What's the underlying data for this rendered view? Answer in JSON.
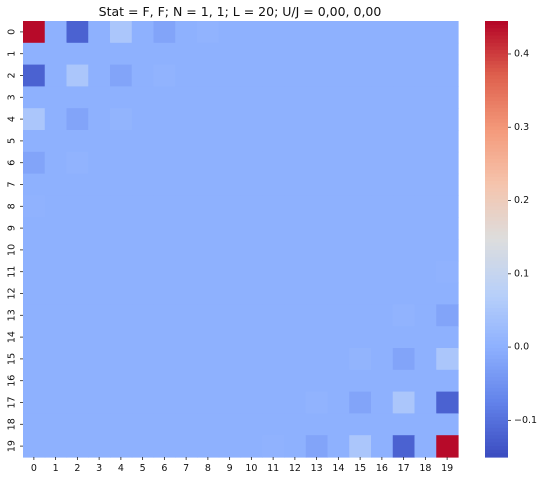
{
  "chart_data": {
    "type": "heatmap",
    "title": "Stat = F, F; N = 1, 1; L = 20; U/J = 0,00, 0,00",
    "xlabel": "",
    "ylabel": "",
    "x_labels": [
      "0",
      "1",
      "2",
      "3",
      "4",
      "5",
      "6",
      "7",
      "8",
      "9",
      "10",
      "11",
      "12",
      "13",
      "14",
      "15",
      "16",
      "17",
      "18",
      "19"
    ],
    "y_labels": [
      "0",
      "1",
      "2",
      "3",
      "4",
      "5",
      "6",
      "7",
      "8",
      "9",
      "10",
      "11",
      "12",
      "13",
      "14",
      "15",
      "16",
      "17",
      "18",
      "19"
    ],
    "colormap": "coolwarm",
    "vmin": -0.15,
    "vmax": 0.445,
    "colorbar_ticks": [
      0.4,
      0.3,
      0.2,
      0.1,
      0.0,
      -0.1
    ],
    "colorbar_tick_labels": [
      "0.4",
      "0.3",
      "0.2",
      "0.1",
      "0.0",
      "−0.1"
    ],
    "default_value": 0.0,
    "cells": [
      {
        "row": 0,
        "col": 0,
        "value": 0.44
      },
      {
        "row": 0,
        "col": 2,
        "value": -0.12
      },
      {
        "row": 0,
        "col": 4,
        "value": 0.05
      },
      {
        "row": 0,
        "col": 6,
        "value": -0.02
      },
      {
        "row": 0,
        "col": 8,
        "value": 0.005
      },
      {
        "row": 2,
        "col": 0,
        "value": -0.12
      },
      {
        "row": 2,
        "col": 2,
        "value": 0.05
      },
      {
        "row": 2,
        "col": 4,
        "value": -0.02
      },
      {
        "row": 2,
        "col": 6,
        "value": 0.005
      },
      {
        "row": 4,
        "col": 0,
        "value": 0.05
      },
      {
        "row": 4,
        "col": 2,
        "value": -0.02
      },
      {
        "row": 4,
        "col": 4,
        "value": 0.008
      },
      {
        "row": 6,
        "col": 0,
        "value": -0.02
      },
      {
        "row": 6,
        "col": 2,
        "value": 0.005
      },
      {
        "row": 8,
        "col": 0,
        "value": 0.004
      },
      {
        "row": 11,
        "col": 19,
        "value": 0.004
      },
      {
        "row": 13,
        "col": 17,
        "value": 0.005
      },
      {
        "row": 13,
        "col": 19,
        "value": -0.02
      },
      {
        "row": 15,
        "col": 15,
        "value": 0.008
      },
      {
        "row": 15,
        "col": 17,
        "value": -0.02
      },
      {
        "row": 15,
        "col": 19,
        "value": 0.05
      },
      {
        "row": 17,
        "col": 13,
        "value": 0.005
      },
      {
        "row": 17,
        "col": 15,
        "value": -0.02
      },
      {
        "row": 17,
        "col": 17,
        "value": 0.05
      },
      {
        "row": 17,
        "col": 19,
        "value": -0.12
      },
      {
        "row": 19,
        "col": 11,
        "value": 0.004
      },
      {
        "row": 19,
        "col": 13,
        "value": -0.02
      },
      {
        "row": 19,
        "col": 15,
        "value": 0.05
      },
      {
        "row": 19,
        "col": 17,
        "value": -0.12
      },
      {
        "row": 19,
        "col": 19,
        "value": 0.44
      }
    ]
  }
}
